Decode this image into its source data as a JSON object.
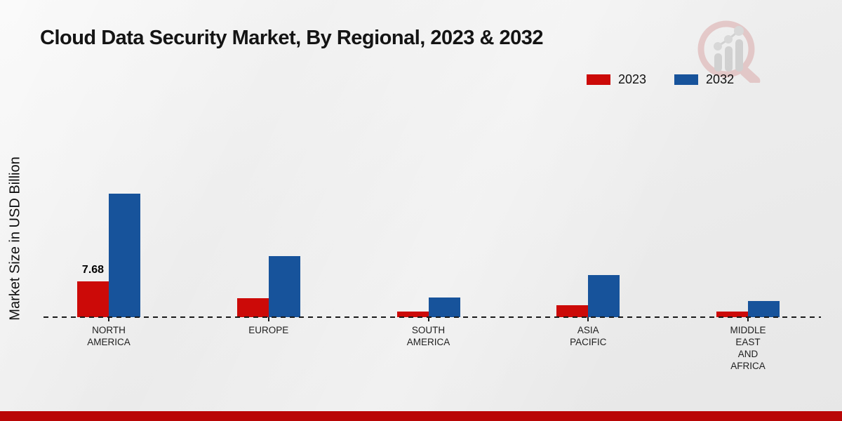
{
  "chart_data": {
    "type": "bar",
    "title": "Cloud Data Security Market, By Regional, 2023 & 2032",
    "ylabel": "Market Size in USD Billion",
    "xlabel": "",
    "categories": [
      "NORTH AMERICA",
      "EUROPE",
      "SOUTH AMERICA",
      "ASIA PACIFIC",
      "MIDDLE EAST AND AFRICA"
    ],
    "series": [
      {
        "name": "2023",
        "color": "#cc0a08",
        "values": [
          7.68,
          4.1,
          1.2,
          2.6,
          1.2
        ]
      },
      {
        "name": "2032",
        "color": "#17539b",
        "values": [
          26.5,
          13.1,
          4.2,
          9.0,
          3.5
        ]
      }
    ],
    "annotations": [
      {
        "series": "2023",
        "category": "NORTH AMERICA",
        "text": "7.68"
      }
    ],
    "legend_position": "top-right",
    "grid": "off",
    "baseline_style": "dashed",
    "ylim": [
      0,
      28
    ]
  },
  "branding": {
    "logo_icon": "magnifier-bar-chart-logo",
    "footer_bar_color": "#b90606"
  },
  "colors": {
    "background": "#ededed",
    "axis": "#1a1a1a",
    "title_text": "#141414"
  }
}
